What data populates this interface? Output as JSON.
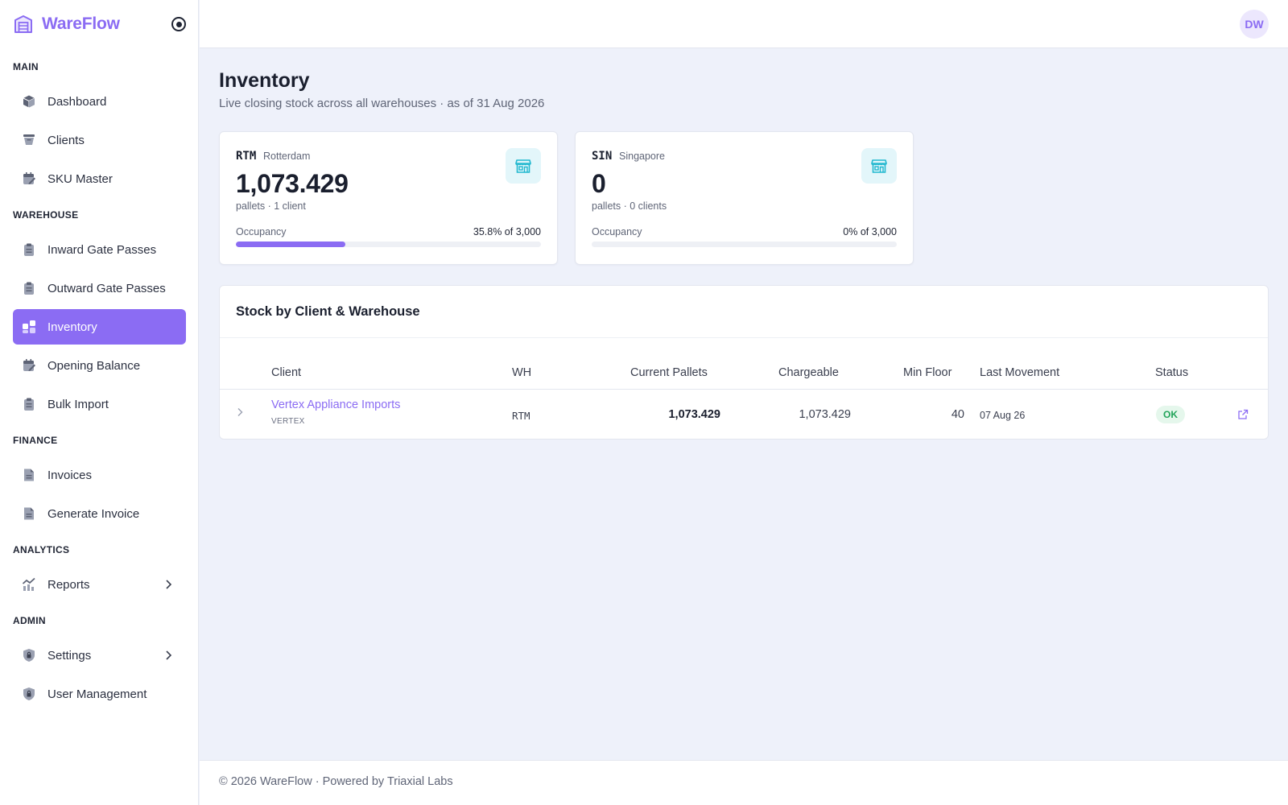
{
  "app": {
    "name": "WareFlow"
  },
  "user": {
    "initials": "DW"
  },
  "sidebar": {
    "sections": {
      "main": "MAIN",
      "warehouse": "WAREHOUSE",
      "finance": "FINANCE",
      "analytics": "ANALYTICS",
      "admin": "ADMIN"
    },
    "items": {
      "dashboard": "Dashboard",
      "clients": "Clients",
      "sku_master": "SKU Master",
      "inward_gate_passes": "Inward Gate Passes",
      "outward_gate_passes": "Outward Gate Passes",
      "inventory": "Inventory",
      "opening_balance": "Opening Balance",
      "bulk_import": "Bulk Import",
      "invoices": "Invoices",
      "generate_invoice": "Generate Invoice",
      "reports": "Reports",
      "settings": "Settings",
      "user_management": "User Management"
    },
    "active": "inventory"
  },
  "page": {
    "title": "Inventory",
    "subtitle": "Live closing stock across all warehouses · as of 31 Aug 2026"
  },
  "warehouses": [
    {
      "code": "RTM",
      "name": "Rotterdam",
      "value": "1,073.429",
      "sub": "pallets · 1 client",
      "occupancy_label": "Occupancy",
      "occupancy_text": "35.8% of 3,000",
      "occupancy_fraction": 0.358
    },
    {
      "code": "SIN",
      "name": "Singapore",
      "value": "0",
      "sub": "pallets · 0 clients",
      "occupancy_label": "Occupancy",
      "occupancy_text": "0% of 3,000",
      "occupancy_fraction": 0
    }
  ],
  "stock_table": {
    "title": "Stock by Client & Warehouse",
    "columns": {
      "client": "Client",
      "wh": "WH",
      "current_pallets": "Current Pallets",
      "chargeable": "Chargeable",
      "min_floor": "Min Floor",
      "last_movement": "Last Movement",
      "status": "Status"
    },
    "rows": [
      {
        "client": "Vertex Appliance Imports",
        "client_code": "VERTEX",
        "wh": "RTM",
        "current_pallets": "1,073.429",
        "chargeable": "1,073.429",
        "min_floor": "40",
        "last_movement": "07 Aug 26",
        "status": "OK"
      }
    ]
  },
  "footer": {
    "text": "© 2026 WareFlow · Powered by Triaxial Labs"
  },
  "colors": {
    "accent": "#8b6cf3",
    "status_ok_bg": "#e5f7ec",
    "status_ok_text": "#22a45a",
    "warehouse_icon_bg": "#e3f6fa",
    "warehouse_icon": "#22b8cf"
  },
  "icons": {
    "brand": "warehouse-logo-icon",
    "collapse": "radio-target-icon",
    "warehouse": "store-icon",
    "expand": "chevron-right-icon",
    "external": "external-link-icon"
  }
}
